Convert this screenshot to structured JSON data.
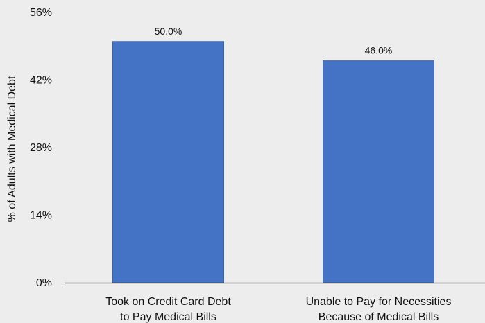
{
  "chart_data": {
    "type": "bar",
    "title": "",
    "xlabel": "",
    "ylabel": "% of Adults with Medical Debt",
    "categories": [
      [
        "Took on Credit Card Debt",
        "to Pay Medical Bills"
      ],
      [
        "Unable to Pay for Necessities",
        "Because of Medical Bills"
      ]
    ],
    "values": [
      50.0,
      46.0
    ],
    "data_labels": [
      "50.0%",
      "46.0%"
    ],
    "ylim": [
      0,
      56
    ],
    "yticks": [
      0,
      14,
      28,
      42,
      56
    ],
    "ytick_labels": [
      "0%",
      "14%",
      "28%",
      "42%",
      "56%"
    ],
    "grid": false,
    "colors": {
      "bar": "#4472c4",
      "bar_edge": "#3a62ab",
      "axis": "#222222",
      "background": "#ededed"
    }
  }
}
